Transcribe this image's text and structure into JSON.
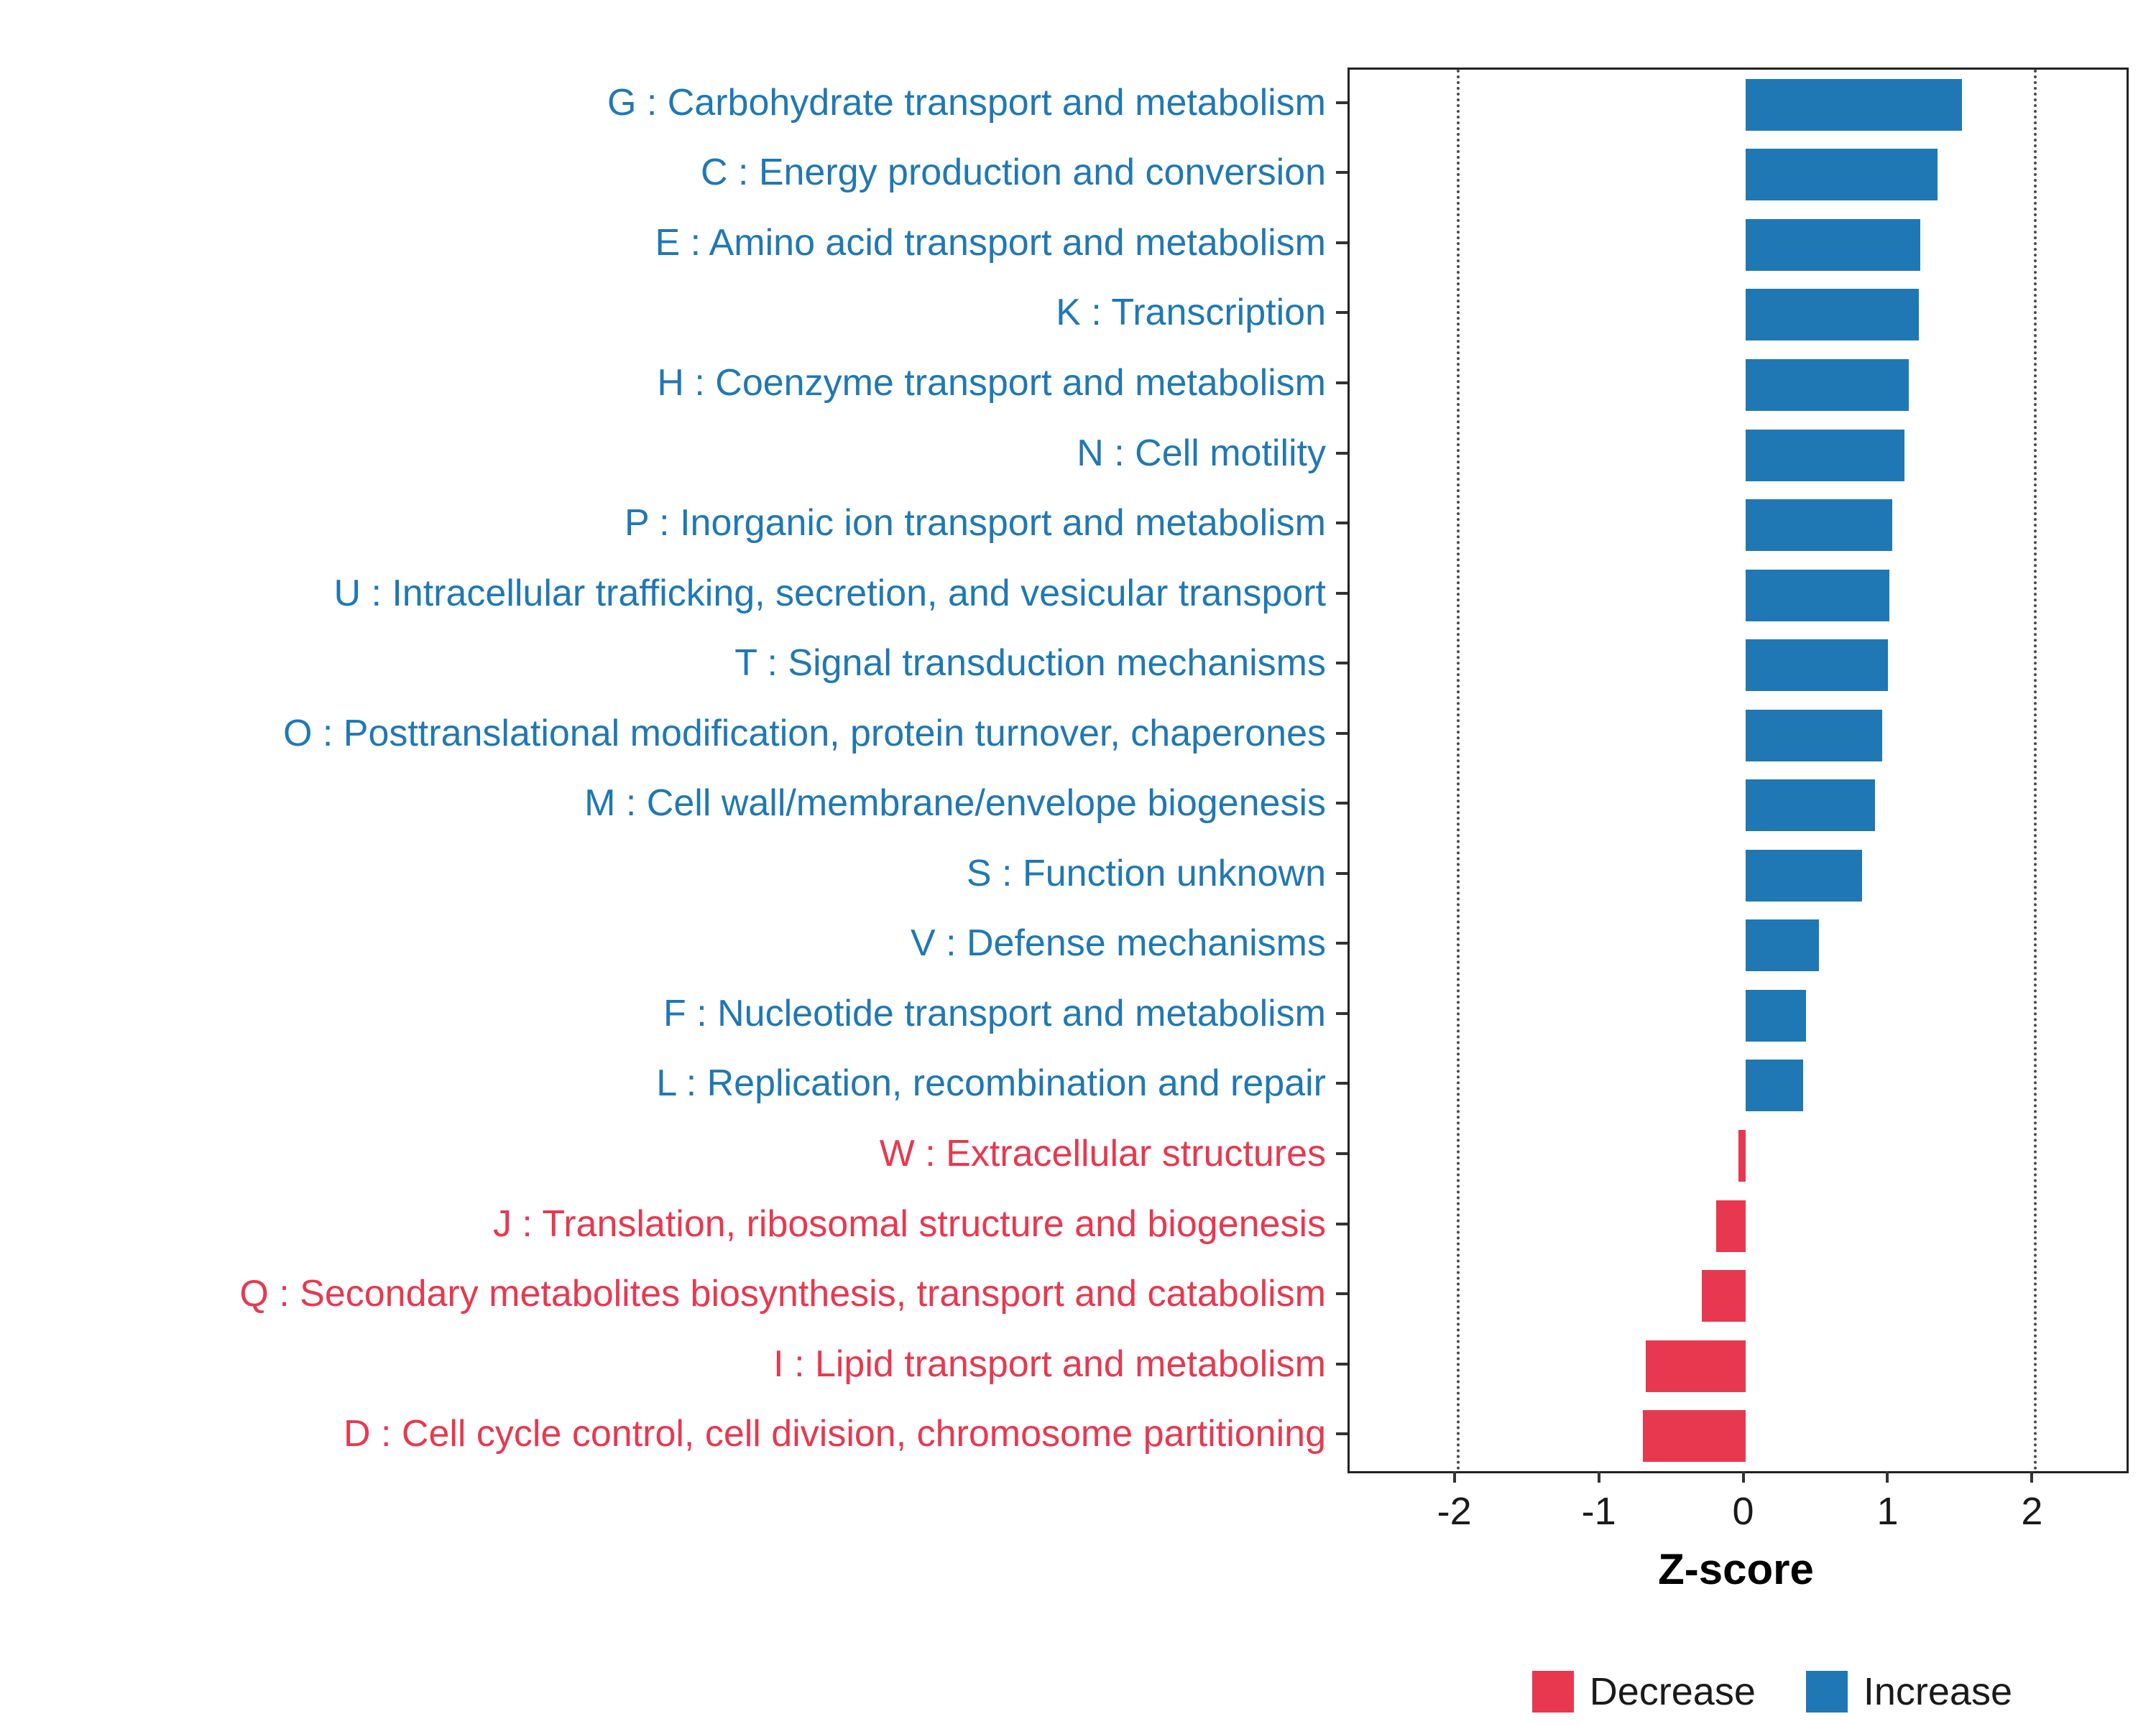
{
  "chart_data": {
    "type": "bar",
    "orientation": "horizontal",
    "title": "",
    "xlabel": "Z-score",
    "ylabel": "",
    "xlim": [
      -2.74,
      2.64
    ],
    "x_ticks": [
      -2,
      -1,
      0,
      1,
      2
    ],
    "reference_lines": [
      -2,
      2
    ],
    "grid": false,
    "categories": [
      "G : Carbohydrate transport and metabolism",
      "C : Energy production and conversion",
      "E : Amino acid transport and metabolism",
      "K : Transcription",
      "H : Coenzyme transport and metabolism",
      "N : Cell motility",
      "P : Inorganic ion transport and metabolism",
      "U : Intracellular trafficking, secretion, and vesicular transport",
      "T : Signal transduction mechanisms",
      "O : Posttranslational modification, protein turnover, chaperones",
      "M : Cell wall/membrane/envelope biogenesis",
      "S : Function unknown",
      "V : Defense mechanisms",
      "F : Nucleotide transport and metabolism",
      "L : Replication, recombination and repair",
      "W : Extracellular structures",
      "J : Translation, ribosomal structure and biogenesis",
      "Q : Secondary metabolites biosynthesis, transport and catabolism",
      "I : Lipid transport and metabolism",
      "D : Cell cycle control, cell division, chromosome partitioning"
    ],
    "values": [
      1.5,
      1.33,
      1.21,
      1.2,
      1.13,
      1.1,
      1.02,
      1.0,
      0.99,
      0.95,
      0.9,
      0.81,
      0.51,
      0.42,
      0.4,
      -0.05,
      -0.2,
      -0.3,
      -0.69,
      -0.71
    ],
    "directions": [
      "Increase",
      "Increase",
      "Increase",
      "Increase",
      "Increase",
      "Increase",
      "Increase",
      "Increase",
      "Increase",
      "Increase",
      "Increase",
      "Increase",
      "Increase",
      "Increase",
      "Increase",
      "Decrease",
      "Decrease",
      "Decrease",
      "Decrease",
      "Decrease"
    ],
    "colors": {
      "Increase": "#1F78B4",
      "Decrease": "#E8384F"
    },
    "legend": {
      "position": "bottom-right",
      "entries": [
        {
          "label": "Decrease",
          "color": "#E8384F"
        },
        {
          "label": "Increase",
          "color": "#1F78B4"
        }
      ]
    }
  }
}
